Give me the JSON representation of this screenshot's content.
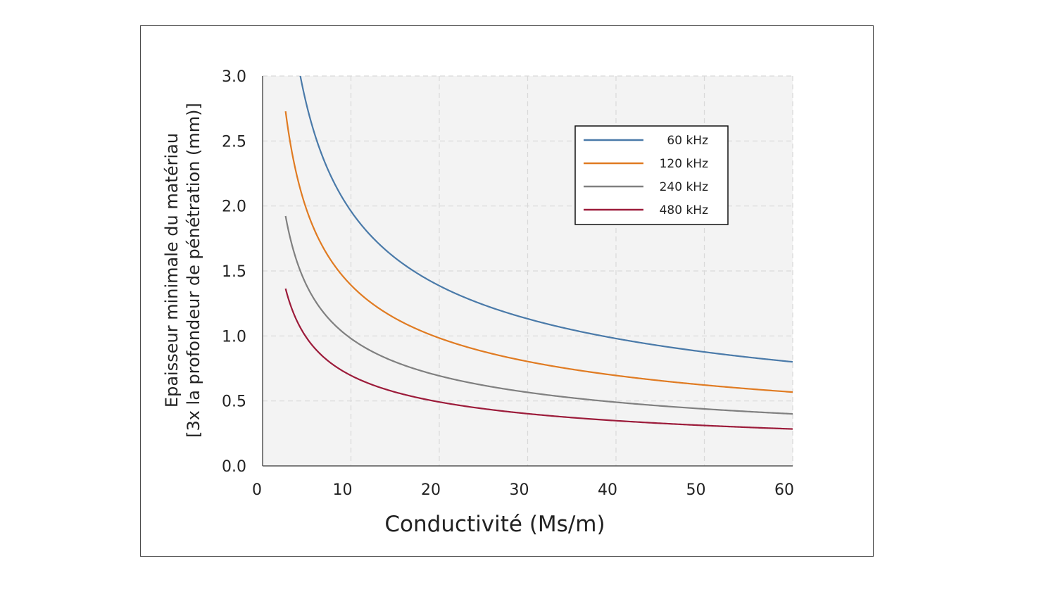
{
  "chart_data": {
    "type": "line",
    "xlabel": "Conductivité (Ms/m)",
    "ylabel_lines": [
      "Epaisseur minimale du matériau",
      "[3x la profondeur de pénétration (mm)]"
    ],
    "xlim": [
      0,
      60
    ],
    "ylim": [
      0,
      3.0
    ],
    "xticks": [
      0,
      10,
      20,
      30,
      40,
      50,
      60
    ],
    "xtick_labels": [
      "0",
      "10",
      "20",
      "30",
      "40",
      "50",
      "60"
    ],
    "yticks": [
      0,
      0.5,
      1.0,
      1.5,
      2.0,
      2.5,
      3.0
    ],
    "ytick_labels": [
      "0.0",
      "0.5",
      "1.0",
      "1.5",
      "2.0",
      "2.5",
      "3.0"
    ],
    "grid": true,
    "legend_position": "top-right",
    "x_start": 2.6,
    "x_end": 60,
    "series": [
      {
        "name": "60 kHz",
        "color": "#4a7aa9",
        "coefficient": 6.2
      },
      {
        "name": "120 kHz",
        "color": "#e07b22",
        "coefficient": 4.4
      },
      {
        "name": "240 kHz",
        "color": "#808080",
        "coefficient": 3.1
      },
      {
        "name": "480 kHz",
        "color": "#9c1b3a",
        "coefficient": 2.2
      }
    ]
  }
}
